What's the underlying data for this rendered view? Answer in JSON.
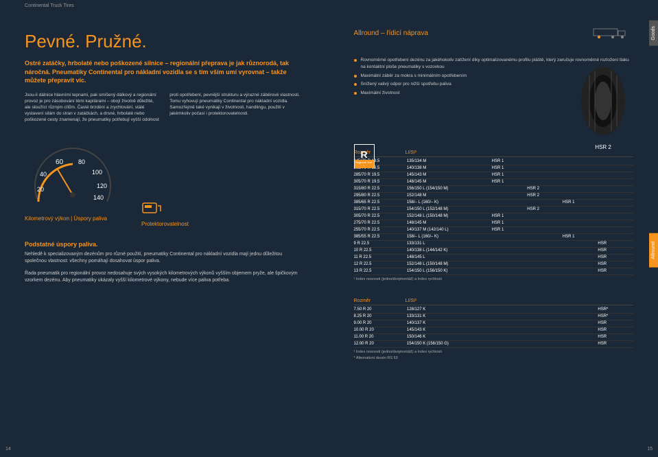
{
  "header": {
    "brand": "Continental Truck Tires"
  },
  "title": "Pevné. Pružné.",
  "intro": "Ostré zatáčky, hrbolaté nebo poškozené silnice – regionální přeprava je jak různorodá, tak náročná. Pneumatiky Continental pro nákladní vozidla se s tím vším umí vyrovnat – takže můžete přepravit víc.",
  "body1": "Jsou-li dálnice hlavními tepnami, pak smíšený dálkový a regionální provoz je pro zásobování těmi kapilárami – obojí životně důležité, ale sloužící různým cílům. Časté brzdění a zrychlování, stálé vystavení silám do stran v zatáčkách, a drsné, hrbolaté nebo poškozené cesty",
  "body2": "znamenají, že pneumatiky potřebují vyšší odolnost proti opotřebení, pevnější strukturu a výrazné záběrové vlastnosti. Tomu vyhovují pneumatiky Continental pro nákladní vozidla. Samozřejmě také vynikají v životnosti, handlingu, použití v jakémkoliv počasí i protektorovatelnosti.",
  "gauge": {
    "numbers": [
      "20",
      "40",
      "60",
      "80",
      "100",
      "120",
      "140"
    ],
    "label1": "Kilometrový výkon | Úspory paliva",
    "label2": "Protektorovatelnost"
  },
  "savings": {
    "title": "Podstatné úspory paliva.",
    "p1": "Nehledě k specializovaným dezénům pro různé použití, pneumatiky Continental pro nákladní vozidla mají jednu důležitou společnou vlastnost: všechny pomáhají dosahovat úspor paliva.",
    "p2": "Řada pneumatik pro regionální provoz nedosahuje svých vysokých kilometrových výkonů vyšším objemem pryže, ale špičkovým vzorkem dezénu. Aby pneumatiky ukázaly vyšší kilometrové výkony, nebude více paliva potřeba."
  },
  "pageLeft": "14",
  "pageRight": "15",
  "right": {
    "title": "Allround – řídicí náprava",
    "goods": "Goods",
    "allround": "Allround",
    "features": [
      "Rovnoměrné opotřebení dezénu za jakéhokoliv zatížení díky optimalizovanému profilu pláště, který zaručuje rovnoměrné rozložení tlaku na kontaktní ploše pneumatiky s vozovkou",
      "Maximální záběr za mokra s minimálním opotřebením",
      "Snížený valivý odpor pro nižší spotřebu paliva",
      "Maximální životnost"
    ],
    "tireLabel": "HSR 2",
    "rBadge": "R",
    "rBadgeTxt": "Regional Traf. ›"
  },
  "table1": {
    "headers": {
      "size": "Rozměr",
      "li": "LI/SI¹"
    },
    "rows": [
      {
        "size": "245/70 R 19.5",
        "li": "135/134 M",
        "m1": "HSR 1"
      },
      {
        "size": "265/70 R 19.5",
        "li": "140/138 M",
        "m1": "HSR 1"
      },
      {
        "size": "285/70 R 19.5",
        "li": "145/143 M",
        "m1": "HSR 1"
      },
      {
        "size": "305/70 R 19.5",
        "li": "148/145 M",
        "m1": "HSR 1"
      },
      {
        "size": "315/80 R 22.5",
        "li": "156/150 L (154/150 M)",
        "m2": "HSR 2"
      },
      {
        "size": "295/80 R 22.5",
        "li": "152/148 M",
        "m2": "HSR 2"
      },
      {
        "size": "385/65 R 22.5",
        "li": "158/– L (160/– K)",
        "m3": "HSR 1"
      },
      {
        "size": "315/70 R 22.5",
        "li": "154/150 L (152/148 M)",
        "m2": "HSR 2"
      },
      {
        "size": "305/70 R 22.5",
        "li": "152/148 L (150/148 M)",
        "m1": "HSR 1"
      },
      {
        "size": "275/70 R 22.5",
        "li": "148/145 M",
        "m1": "HSR 1"
      },
      {
        "size": "255/70 R 22.5",
        "li": "140/137 M (142/140 L)",
        "m1": "HSR 1"
      },
      {
        "size": "385/55 R 22.5",
        "li": "158/– L (160/– K)",
        "m3": "HSR 1"
      },
      {
        "size": "9 R 22.5",
        "li": "133/131 L",
        "m4": "HSR"
      },
      {
        "size": "10 R 22.5",
        "li": "140/138 L (144/142 K)",
        "m4": "HSR"
      },
      {
        "size": "11 R 22.5",
        "li": "148/145 L",
        "m4": "HSR"
      },
      {
        "size": "12 R 22.5",
        "li": "152/148 L (150/148 M)",
        "m4": "HSR"
      },
      {
        "size": "13 R 22.5",
        "li": "154/150 L (156/150 K)",
        "m4": "HSR"
      }
    ],
    "footnote": "¹ Index nosnosti (jedno/dvojmontáž) a Index rychlosti"
  },
  "table2": {
    "headers": {
      "size": "Rozměr",
      "li": "LI/SI¹"
    },
    "rows": [
      {
        "size": "7.50 R 20",
        "li": "128/127 K",
        "m": "HSR*"
      },
      {
        "size": "8.25 R 20",
        "li": "133/131 K",
        "m": "HSR*"
      },
      {
        "size": "9.00 R 20",
        "li": "140/137 K",
        "m": "HSR"
      },
      {
        "size": "10.00 R 20",
        "li": "145/143 K",
        "m": "HSR"
      },
      {
        "size": "11.00 R 20",
        "li": "150/146 K",
        "m": "HSR"
      },
      {
        "size": "12.00 R 20",
        "li": "154/150 K (156/150 G)",
        "m": "HSR"
      }
    ],
    "footnote1": "¹ Index nosnosti (jedno/dvojmontáž) a Index rychlosti",
    "footnote2": "* Alternativní dezén RS 63"
  },
  "colors": {
    "orange": "#f7941e",
    "bg": "#1a2838",
    "text": "#cccccc"
  }
}
